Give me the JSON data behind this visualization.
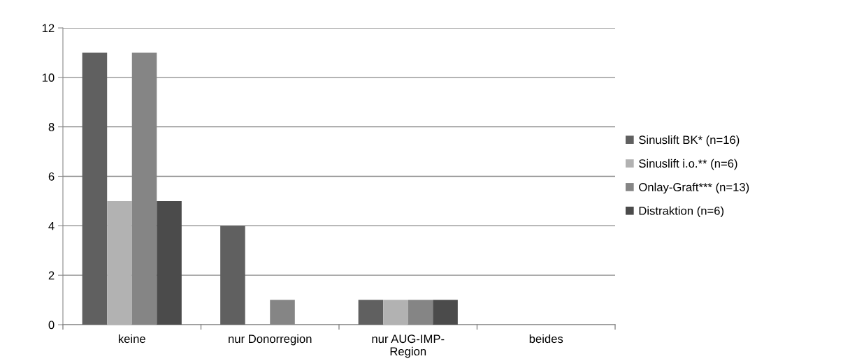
{
  "chart_data": {
    "type": "bar",
    "categories": [
      "keine",
      "nur Donorregion",
      "nur AUG-IMP-\nRegion",
      "beides"
    ],
    "series": [
      {
        "name": "Sinuslift BK* (n=16)",
        "color": "#606060",
        "values": [
          11,
          4,
          1,
          0
        ]
      },
      {
        "name": "Sinuslift i.o.** (n=6)",
        "color": "#b2b2b2",
        "values": [
          5,
          0,
          1,
          0
        ]
      },
      {
        "name": "Onlay-Graft*** (n=13)",
        "color": "#858585",
        "values": [
          11,
          1,
          1,
          0
        ]
      },
      {
        "name": "Distraktion (n=6)",
        "color": "#4b4b4b",
        "values": [
          5,
          0,
          1,
          0
        ]
      }
    ],
    "ylim": [
      0,
      12
    ],
    "yticks": [
      0,
      2,
      4,
      6,
      8,
      10,
      12
    ],
    "grid": "y",
    "legend": "right"
  }
}
